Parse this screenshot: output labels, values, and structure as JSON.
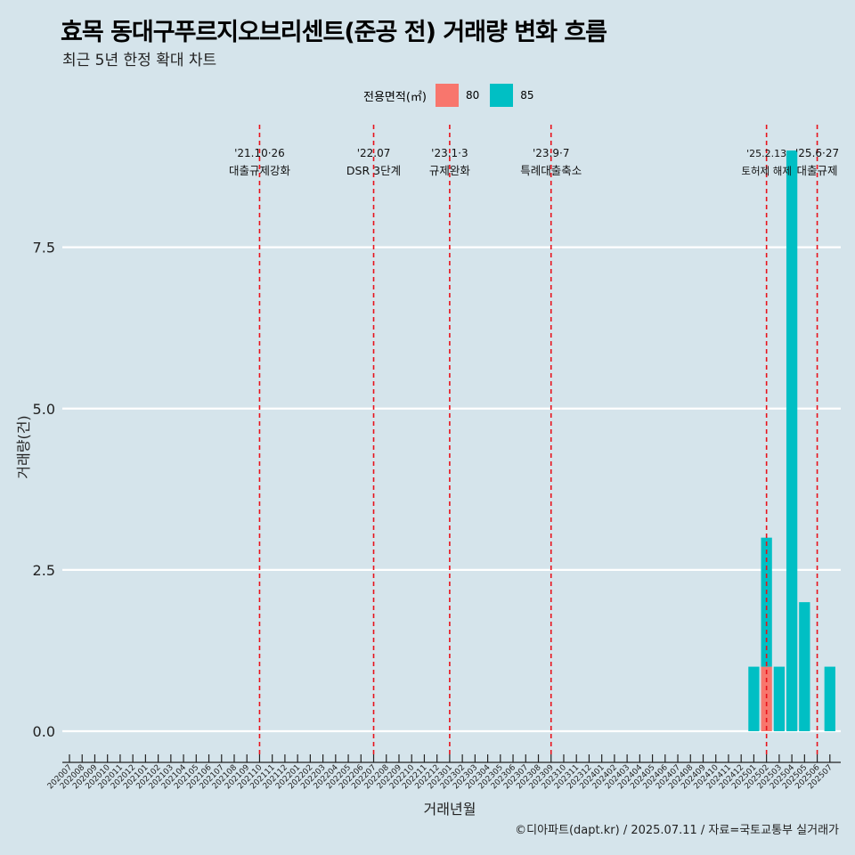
{
  "chart_data": {
    "type": "bar",
    "title": "효목 동대구푸르지오브리센트(준공 전) 거래량 변화 흐름",
    "subtitle": "최근 5년 한정 확대 차트",
    "xlabel": "거래년월",
    "ylabel": "거래량(건)",
    "ylim": [
      -0.4,
      9.4
    ],
    "yticks": [
      0,
      2.5,
      5,
      7.5
    ],
    "ytick_labels": [
      "0.0",
      "2.5",
      "5.0",
      "7.5"
    ],
    "grid": true,
    "legend": {
      "title": "전용면적(㎡)",
      "position": "top",
      "entries": [
        "80",
        "85"
      ]
    },
    "categories": [
      "202007",
      "202008",
      "202009",
      "202010",
      "202011",
      "202012",
      "202101",
      "202102",
      "202103",
      "202104",
      "202105",
      "202106",
      "202107",
      "202108",
      "202109",
      "202110",
      "202111",
      "202112",
      "202201",
      "202202",
      "202203",
      "202204",
      "202205",
      "202206",
      "202207",
      "202208",
      "202209",
      "202210",
      "202211",
      "202212",
      "202301",
      "202302",
      "202303",
      "202304",
      "202305",
      "202306",
      "202307",
      "202308",
      "202309",
      "202310",
      "202311",
      "202312",
      "202401",
      "202402",
      "202403",
      "202404",
      "202405",
      "202406",
      "202407",
      "202408",
      "202409",
      "202410",
      "202411",
      "202412",
      "202501",
      "202502",
      "202503",
      "202504",
      "202505",
      "202506",
      "202507"
    ],
    "series": [
      {
        "name": "80",
        "color": "#f8766d",
        "values": [
          0,
          0,
          0,
          0,
          0,
          0,
          0,
          0,
          0,
          0,
          0,
          0,
          0,
          0,
          0,
          0,
          0,
          0,
          0,
          0,
          0,
          0,
          0,
          0,
          0,
          0,
          0,
          0,
          0,
          0,
          0,
          0,
          0,
          0,
          0,
          0,
          0,
          0,
          0,
          0,
          0,
          0,
          0,
          0,
          0,
          0,
          0,
          0,
          0,
          0,
          0,
          0,
          0,
          0,
          0,
          1,
          0,
          0,
          0,
          0,
          0
        ]
      },
      {
        "name": "85",
        "color": "#00bfc4",
        "values": [
          0,
          0,
          0,
          0,
          0,
          0,
          0,
          0,
          0,
          0,
          0,
          0,
          0,
          0,
          0,
          0,
          0,
          0,
          0,
          0,
          0,
          0,
          0,
          0,
          0,
          0,
          0,
          0,
          0,
          0,
          0,
          0,
          0,
          0,
          0,
          0,
          0,
          0,
          0,
          0,
          0,
          0,
          0,
          0,
          0,
          0,
          0,
          0,
          0,
          0,
          0,
          0,
          0,
          0,
          1,
          2,
          1,
          9,
          2,
          0,
          1
        ]
      }
    ],
    "annotations": [
      {
        "x": "202110",
        "date": "'21.10·26",
        "label": "대출규제강화"
      },
      {
        "x": "202207",
        "date": "'22.07",
        "label": "DSR 3단계"
      },
      {
        "x": "202301",
        "date": "'23.1·3",
        "label": "규제완화"
      },
      {
        "x": "202309",
        "date": "'23.9·7",
        "label": "특례대출축소"
      },
      {
        "x": "202502",
        "date": "'25.2.13",
        "label": "토허제 해제"
      },
      {
        "x": "202506",
        "date": "'25.6·27",
        "label": "대출규제"
      }
    ],
    "caption": "©디아파트(dapt.kr) / 2025.07.11 / 자료=국토교통부 실거래가"
  }
}
